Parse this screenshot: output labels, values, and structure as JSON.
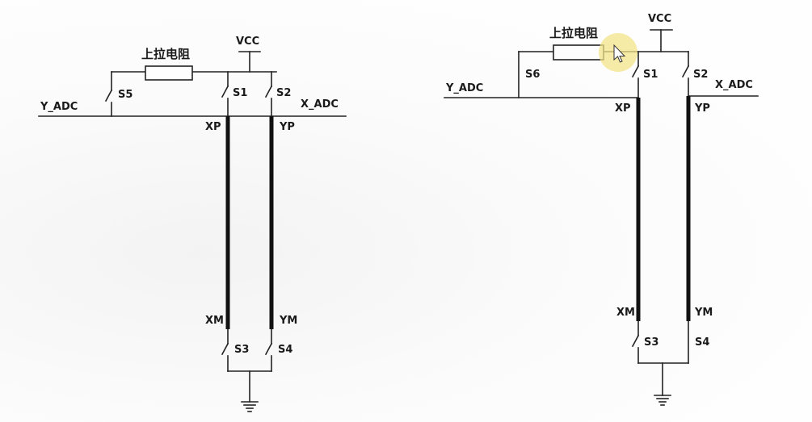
{
  "left": {
    "resistor": "上拉电阻",
    "vcc": "VCC",
    "y_adc": "Y_ADC",
    "x_adc": "X_ADC",
    "s1": "S1",
    "s2": "S2",
    "s3": "S3",
    "s4": "S4",
    "s5": "S5",
    "xp": "XP",
    "yp": "YP",
    "xm": "XM",
    "ym": "YM"
  },
  "right": {
    "resistor": "上拉电阻",
    "vcc": "VCC",
    "y_adc": "Y_ADC",
    "x_adc": "X_ADC",
    "s1": "S1",
    "s2": "S2",
    "s3": "S3",
    "s4": "S4",
    "s6": "S6",
    "xp": "XP",
    "yp": "YP",
    "xm": "XM",
    "ym": "YM"
  },
  "cursor": {
    "shape": "arrow-pointer",
    "highlight_color": "#f3e38a"
  }
}
